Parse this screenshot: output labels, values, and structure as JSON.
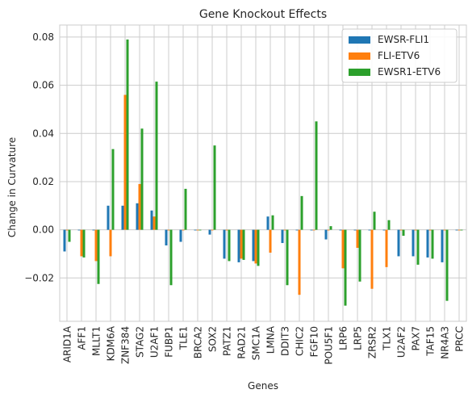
{
  "chart_data": {
    "type": "bar",
    "title": "Gene Knockout Effects",
    "xlabel": "Genes",
    "ylabel": "Change in Curvature",
    "ylim": [
      -0.038,
      0.085
    ],
    "yticks": [
      -0.02,
      0.0,
      0.02,
      0.04,
      0.06,
      0.08
    ],
    "ytick_labels": [
      "−0.02",
      "0.00",
      "0.02",
      "0.04",
      "0.06",
      "0.08"
    ],
    "grid": true,
    "legend_position": "top-right",
    "categories": [
      "ARID1A",
      "AFF1",
      "MLLT1",
      "KDM6A",
      "ZNF384",
      "STAG2",
      "U2AF1",
      "FUBP1",
      "TLE1",
      "BRCA2",
      "SOX2",
      "PATZ1",
      "RAD21",
      "SMC1A",
      "LMNA",
      "DDIT3",
      "CHIC2",
      "FGF10",
      "POU5F1",
      "LRP6",
      "LRP5",
      "ZRSR2",
      "TLX1",
      "U2AF2",
      "PAX7",
      "TAF15",
      "NR4A3",
      "PRCC"
    ],
    "series": [
      {
        "name": "EWSR-FLI1",
        "color": "#1f77b4",
        "values": [
          -0.009,
          0.0,
          0.0,
          0.01,
          0.01,
          0.011,
          0.008,
          -0.0065,
          -0.005,
          0.0,
          -0.002,
          -0.012,
          -0.0135,
          -0.013,
          0.0055,
          -0.0055,
          0.0,
          0.0,
          -0.004,
          0.0,
          0.0,
          0.0,
          0.0,
          -0.011,
          -0.011,
          -0.0115,
          -0.0135,
          0.0
        ]
      },
      {
        "name": "FLI-ETV6",
        "color": "#ff7f0e",
        "values": [
          0.0,
          -0.011,
          -0.013,
          -0.011,
          0.056,
          0.019,
          0.0055,
          0.0,
          0.0,
          0.0,
          0.0,
          0.0,
          -0.012,
          -0.014,
          -0.0095,
          0.0,
          -0.027,
          0.0,
          0.0,
          -0.016,
          -0.0075,
          -0.0245,
          -0.0155,
          0.0,
          0.0,
          0.0,
          0.0,
          0.0
        ]
      },
      {
        "name": "EWSR1-ETV6",
        "color": "#2ca02c",
        "values": [
          -0.005,
          -0.0115,
          -0.0225,
          0.0335,
          0.079,
          0.042,
          0.0615,
          -0.023,
          0.017,
          0.0,
          0.035,
          -0.013,
          -0.0125,
          -0.015,
          0.006,
          -0.023,
          0.014,
          0.045,
          0.0015,
          -0.0315,
          -0.0215,
          0.0075,
          0.004,
          -0.0025,
          -0.0145,
          -0.012,
          -0.0295,
          0.0
        ]
      }
    ]
  }
}
